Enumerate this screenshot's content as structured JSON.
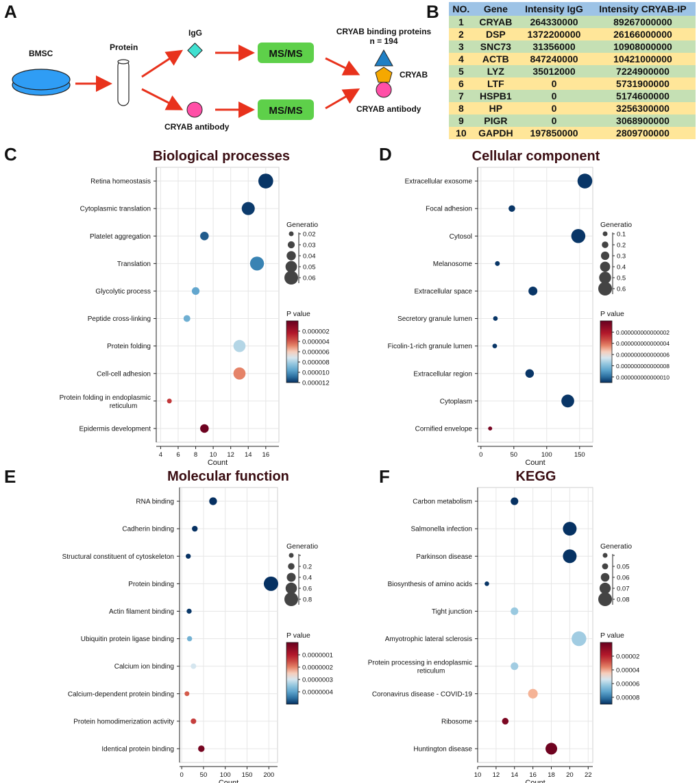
{
  "panels": {
    "a": "A",
    "b": "B",
    "c": "C",
    "d": "D",
    "e": "E",
    "f": "F"
  },
  "flow": {
    "bmsc": "BMSC",
    "protein": "Protein",
    "igg": "IgG",
    "cryab_antibody": "CRYAB antibody",
    "msms1": "MS/MS",
    "msms2": "MS/MS",
    "binding_title": "CRYAB binding proteins",
    "binding_n": "n = 194",
    "cryab": "CRYAB",
    "cryab_antibody_right": "CRYAB antibody"
  },
  "table": {
    "headers": [
      "NO.",
      "Gene",
      "Intensity IgG",
      "Intensity CRYAB-IP"
    ],
    "rows": [
      [
        "1",
        "CRYAB",
        "264330000",
        "89267000000"
      ],
      [
        "2",
        "DSP",
        "1372200000",
        "26166000000"
      ],
      [
        "3",
        "SNC73",
        "31356000",
        "10908000000"
      ],
      [
        "4",
        "ACTB",
        "847240000",
        "10421000000"
      ],
      [
        "5",
        "LYZ",
        "35012000",
        "7224900000"
      ],
      [
        "6",
        "LTF",
        "0",
        "5731900000"
      ],
      [
        "7",
        "HSPB1",
        "0",
        "5174600000"
      ],
      [
        "8",
        "HP",
        "0",
        "3256300000"
      ],
      [
        "9",
        "PIGR",
        "0",
        "3068900000"
      ],
      [
        "10",
        "GAPDH",
        "197850000",
        "2809700000"
      ]
    ]
  },
  "colors": {
    "high_p": "#67001f",
    "mid": "#f7f7f7",
    "low_p": "#053061",
    "bubble_legend": "#444444",
    "flow_arrow": "#e8321c",
    "msms_box": "#5ed04a",
    "dish": "#2f9df5",
    "diamond": "#40e0d0",
    "circle_pink": "#ff4fa7",
    "triangle": "#1f7fc4",
    "pentagon": "#f5a800"
  },
  "chart_data": [
    {
      "type": "scatter",
      "title": "Biological processes",
      "xlabel": "Count",
      "xlim": [
        3.5,
        17.5
      ],
      "xticks": [
        4,
        6,
        8,
        10,
        12,
        14,
        16
      ],
      "categories": [
        "Retina homeostasis",
        "Cytoplasmic translation",
        "Platelet aggregation",
        "Translation",
        "Glycolytic process",
        "Peptide cross-linking",
        "Protein folding",
        "Cell-cell adhesion",
        "Protein folding in endoplasmic reticulum",
        "Epidermis development"
      ],
      "count": [
        16,
        14,
        9,
        15,
        8,
        7,
        13,
        13,
        5,
        9
      ],
      "generatio": [
        0.065,
        0.057,
        0.037,
        0.061,
        0.033,
        0.029,
        0.053,
        0.053,
        0.02,
        0.037
      ],
      "pvalue": [
        1e-07,
        2e-07,
        8e-07,
        1.5e-06,
        2.5e-06,
        2.8e-06,
        4.2e-06,
        7.2e-06,
        8.8e-06,
        1.18e-05
      ],
      "size_legend": {
        "title": "Generatio",
        "values": [
          0.02,
          0.03,
          0.04,
          0.05,
          0.06
        ],
        "labels": [
          "0.02",
          "0.03",
          "0.04",
          "0.05",
          "0.06"
        ]
      },
      "color_legend": {
        "title": "P value",
        "min": 0,
        "max": 1.2e-05,
        "ticks": [
          2e-06,
          4e-06,
          6e-06,
          8e-06,
          1e-05,
          1.2e-05
        ],
        "labels": [
          "0.000002",
          "0.000004",
          "0.000006",
          "0.000008",
          "0.000010",
          "0.000012"
        ]
      }
    },
    {
      "type": "scatter",
      "title": "Cellular component",
      "xlabel": "Count",
      "xlim": [
        -5,
        170
      ],
      "xticks": [
        0,
        50,
        100,
        150
      ],
      "categories": [
        "Extracellular exosome",
        "Focal adhesion",
        "Cytosol",
        "Melanosome",
        "Extracellular space",
        "Secretory granule lumen",
        "Ficolin-1-rich granule lumen",
        "Extracellular region",
        "Cytoplasm",
        "Cornified envelope"
      ],
      "count": [
        158,
        47,
        148,
        25,
        79,
        22,
        21,
        74,
        132,
        14
      ],
      "generatio": [
        0.66,
        0.2,
        0.62,
        0.1,
        0.33,
        0.09,
        0.09,
        0.31,
        0.55,
        0.06
      ],
      "pvalue": [
        1e-17,
        1e-17,
        1e-17,
        1e-17,
        1e-17,
        1e-17,
        1e-17,
        1e-17,
        1e-17,
        1.05e-15
      ],
      "size_legend": {
        "title": "Generatio",
        "values": [
          0.1,
          0.2,
          0.3,
          0.4,
          0.5,
          0.6
        ],
        "labels": [
          "0.1",
          "0.2",
          "0.3",
          "0.4",
          "0.5",
          "0.6"
        ]
      },
      "color_legend": {
        "title": "P value",
        "min": 0,
        "max": 1.1e-15,
        "ticks": [
          2e-16,
          4e-16,
          6e-16,
          8e-16,
          1e-15
        ],
        "labels": [
          "0.000000000000002",
          "0.000000000000004",
          "0.000000000000006",
          "0.000000000000008",
          "0.000000000000010"
        ]
      }
    },
    {
      "type": "scatter",
      "title": "Molecular function",
      "xlabel": "Count",
      "xlim": [
        -5,
        220
      ],
      "xticks": [
        0,
        50,
        100,
        150,
        200
      ],
      "categories": [
        "RNA binding",
        "Cadherin binding",
        "Structural constituent of cytoskeleton",
        "Protein binding",
        "Actin filament binding",
        "Ubiquitin protein ligase binding",
        "Calcium ion binding",
        "Calcium-dependent protein binding",
        "Protein homodimerization activity",
        "Identical protein binding"
      ],
      "count": [
        72,
        30,
        15,
        205,
        17,
        18,
        27,
        12,
        27,
        45
      ],
      "generatio": [
        0.3,
        0.13,
        0.07,
        0.86,
        0.07,
        0.08,
        0.11,
        0.05,
        0.11,
        0.19
      ],
      "pvalue": [
        1e-09,
        1e-09,
        1e-09,
        1e-09,
        5e-09,
        1.2e-07,
        2e-07,
        3.3e-07,
        3.6e-07,
        4.8e-07
      ],
      "size_legend": {
        "title": "Generatio",
        "values": [
          0.05,
          0.2,
          0.4,
          0.6,
          0.8
        ],
        "labels": [
          "",
          "0.2",
          "0.4",
          "0.6",
          "0.8"
        ]
      },
      "color_legend": {
        "title": "P value",
        "min": 0,
        "max": 5e-07,
        "ticks": [
          1e-07,
          2e-07,
          3e-07,
          4e-07
        ],
        "labels": [
          "0.0000001",
          "0.0000002",
          "0.0000003",
          "0.0000004"
        ]
      }
    },
    {
      "type": "scatter",
      "title": "KEGG",
      "xlabel": "Count",
      "xlim": [
        10,
        22.5
      ],
      "xticks": [
        10,
        12,
        14,
        16,
        18,
        20,
        22
      ],
      "categories": [
        "Carbon metabolism",
        "Salmonella infection",
        "Parkinson disease",
        "Biosynthesis of amino acids",
        "Tight junction",
        "Amyotrophic lateral sclerosis",
        "Protein processing in endoplasmic reticulum",
        "Coronavirus disease - COVID-19",
        "Ribosome",
        "Huntington disease"
      ],
      "count": [
        14,
        20,
        20,
        11,
        14,
        21,
        14,
        16,
        13,
        18
      ],
      "generatio": [
        0.056,
        0.08,
        0.08,
        0.044,
        0.056,
        0.084,
        0.056,
        0.064,
        0.052,
        0.072
      ],
      "pvalue": [
        2e-07,
        3e-07,
        4e-07,
        8e-07,
        2.8e-05,
        2.9e-05,
        2.9e-05,
        4.8e-05,
        8.5e-05,
        8.8e-05
      ],
      "size_legend": {
        "title": "Generatio",
        "values": [
          0.045,
          0.05,
          0.06,
          0.07,
          0.08
        ],
        "labels": [
          "",
          "0.05",
          "0.06",
          "0.07",
          "0.08"
        ]
      },
      "color_legend": {
        "title": "P value",
        "min": 0,
        "max": 9e-05,
        "ticks": [
          2e-05,
          4e-05,
          6e-05,
          8e-05
        ],
        "labels": [
          "0.00002",
          "0.00004",
          "0.00006",
          "0.00008"
        ]
      }
    }
  ]
}
